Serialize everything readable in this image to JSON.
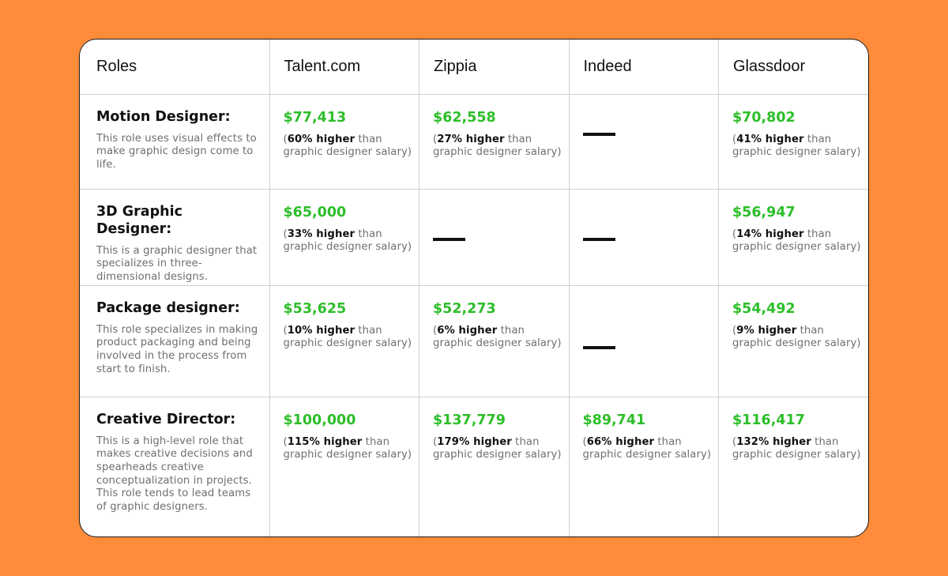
{
  "headers": [
    "Roles",
    "Talent.com",
    "Zippia",
    "Indeed",
    "Glassdoor"
  ],
  "rows": [
    {
      "title": "Motion Designer:",
      "desc": "This role uses visual effects to make graphic design come to life.",
      "cells": [
        {
          "salary": "$77,413",
          "open": "(",
          "pct": "60% higher",
          "than": " than",
          "rest": "graphic designer salary)"
        },
        {
          "salary": "$62,558",
          "open": "(",
          "pct": "27% higher",
          "than": " than",
          "rest": "graphic designer salary)"
        },
        {
          "dash": "—"
        },
        {
          "salary": "$70,802",
          "open": "(",
          "pct": "41% higher",
          "than": " than",
          "rest": "graphic designer salary)"
        }
      ]
    },
    {
      "title": "3D Graphic Designer:",
      "desc": "This is a graphic designer that specializes in three-dimensional designs.",
      "cells": [
        {
          "salary": "$65,000",
          "open": "(",
          "pct": "33% higher",
          "than": " than",
          "rest": "graphic designer salary)"
        },
        {
          "dash": "—"
        },
        {
          "dash": "—"
        },
        {
          "salary": "$56,947",
          "open": "(",
          "pct": "14% higher",
          "than": " than",
          "rest": "graphic designer salary)"
        }
      ]
    },
    {
      "title": "Package designer:",
      "desc": "This role specializes in making product packaging and being involved in the process from start to finish.",
      "cells": [
        {
          "salary": "$53,625",
          "open": "(",
          "pct": "10% higher",
          "than": " than",
          "rest": "graphic designer salary)"
        },
        {
          "salary": "$52,273",
          "open": "(",
          "pct": "6% higher",
          "than": " than",
          "rest": "graphic designer salary)"
        },
        {
          "dash": "—"
        },
        {
          "salary": "$54,492",
          "open": "(",
          "pct": "9% higher",
          "than": " than",
          "rest": "graphic designer salary)"
        }
      ]
    },
    {
      "title": "Creative Director:",
      "desc": "This is a high-level role that makes creative decisions and spearheads creative conceptualization in projects. This role tends to lead teams of graphic designers.",
      "cells": [
        {
          "salary": "$100,000",
          "open": "(",
          "pct": "115% higher",
          "than": " than",
          "rest": "graphic designer salary)"
        },
        {
          "salary": "$137,779",
          "open": "(",
          "pct": "179% higher",
          "than": " than",
          "rest": "graphic designer salary)"
        },
        {
          "salary": "$89,741",
          "open": "(",
          "pct": "66% higher",
          "than": " than",
          "rest": "graphic designer salary)"
        },
        {
          "salary": "$116,417",
          "open": "(",
          "pct": "132% higher",
          "than": " than",
          "rest": "graphic designer salary)"
        }
      ]
    }
  ],
  "colors": {
    "background": "#FF8C3A",
    "salary_green": "#2DBE29",
    "text_dark": "#111111",
    "text_muted": "#6f6f6f"
  }
}
